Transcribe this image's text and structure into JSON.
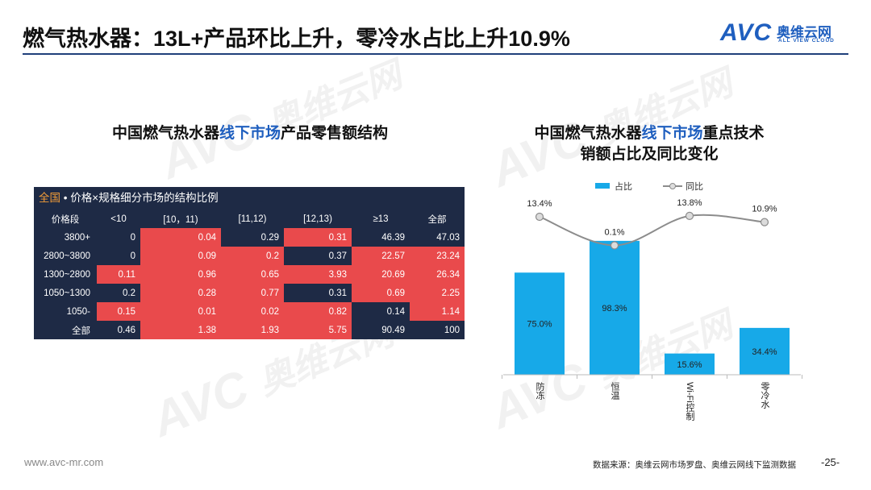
{
  "slide": {
    "title": "燃气热水器：13L+产品环比上升，零冷水占比上升10.9%",
    "logo_mark": "AVC",
    "logo_cn": "奥维云网",
    "logo_en": "ALL VIEW CLOUD",
    "footer_url": "www.avc-mr.com",
    "footer_source": "数据来源：奥维云网市场罗盘、奥维云网线下监测数据",
    "page_number": "-25-",
    "watermark_mark": "AVC",
    "watermark_cn": "奥维云网",
    "watermark_en": "ALL VIEW CLOUD"
  },
  "left": {
    "title_part1": "中国燃气热水器",
    "title_highlight": "线下市场",
    "title_part2": "产品零售额结构"
  },
  "table": {
    "caption_scope": "全国",
    "caption_text": " • 价格×规格细分市场的结构比例",
    "headers": [
      "价格段",
      "<10",
      "[10，11)",
      "[11,12)",
      "[12,13)",
      "≥13",
      "全部"
    ],
    "rows": [
      {
        "label": "3800+",
        "cells": [
          {
            "v": "0",
            "hot": false
          },
          {
            "v": "0.04",
            "hot": true
          },
          {
            "v": "0.29",
            "hot": false
          },
          {
            "v": "0.31",
            "hot": true
          },
          {
            "v": "46.39",
            "hot": false
          },
          {
            "v": "47.03",
            "hot": false
          }
        ]
      },
      {
        "label": "2800~3800",
        "cells": [
          {
            "v": "0",
            "hot": false
          },
          {
            "v": "0.09",
            "hot": true
          },
          {
            "v": "0.2",
            "hot": true
          },
          {
            "v": "0.37",
            "hot": false
          },
          {
            "v": "22.57",
            "hot": true
          },
          {
            "v": "23.24",
            "hot": true
          }
        ]
      },
      {
        "label": "1300~2800",
        "cells": [
          {
            "v": "0.11",
            "hot": true
          },
          {
            "v": "0.96",
            "hot": true
          },
          {
            "v": "0.65",
            "hot": true
          },
          {
            "v": "3.93",
            "hot": true
          },
          {
            "v": "20.69",
            "hot": true
          },
          {
            "v": "26.34",
            "hot": true
          }
        ]
      },
      {
        "label": "1050~1300",
        "cells": [
          {
            "v": "0.2",
            "hot": false
          },
          {
            "v": "0.28",
            "hot": true
          },
          {
            "v": "0.77",
            "hot": true
          },
          {
            "v": "0.31",
            "hot": false
          },
          {
            "v": "0.69",
            "hot": true
          },
          {
            "v": "2.25",
            "hot": true
          }
        ]
      },
      {
        "label": "1050-",
        "cells": [
          {
            "v": "0.15",
            "hot": true
          },
          {
            "v": "0.01",
            "hot": true
          },
          {
            "v": "0.02",
            "hot": true
          },
          {
            "v": "0.82",
            "hot": true
          },
          {
            "v": "0.14",
            "hot": false
          },
          {
            "v": "1.14",
            "hot": true
          }
        ]
      },
      {
        "label": "全部",
        "cells": [
          {
            "v": "0.46",
            "hot": false
          },
          {
            "v": "1.38",
            "hot": true
          },
          {
            "v": "1.93",
            "hot": true
          },
          {
            "v": "5.75",
            "hot": true
          },
          {
            "v": "90.49",
            "hot": false
          },
          {
            "v": "100",
            "hot": false
          }
        ]
      }
    ],
    "colors": {
      "hot": "#e94a4c",
      "cool": "#1e2a45",
      "scope": "#f29c38"
    }
  },
  "right": {
    "title_part1": "中国燃气热水器",
    "title_highlight": "线下市场",
    "title_part2": "重点技术",
    "title_line2": "销额占比及同比变化"
  },
  "chart_data": {
    "type": "bar",
    "categories": [
      "防冻",
      "恒温",
      "Wi-Fi控制",
      "零冷水"
    ],
    "series": [
      {
        "name": "占比",
        "type": "bar",
        "values": [
          75.0,
          98.3,
          15.6,
          34.4
        ],
        "labels": [
          "75.0%",
          "98.3%",
          "15.6%",
          "34.4%"
        ],
        "color": "#17a9e8"
      },
      {
        "name": "同比",
        "type": "line",
        "values": [
          13.4,
          0.1,
          13.8,
          10.9
        ],
        "labels": [
          "13.4%",
          "0.1%",
          "13.8%",
          "10.9%"
        ],
        "color": "#8c8c8c"
      }
    ],
    "legend_position": "top",
    "ylim_bar": [
      0,
      100
    ],
    "ylim_line": [
      -60,
      22
    ],
    "grid": false
  }
}
